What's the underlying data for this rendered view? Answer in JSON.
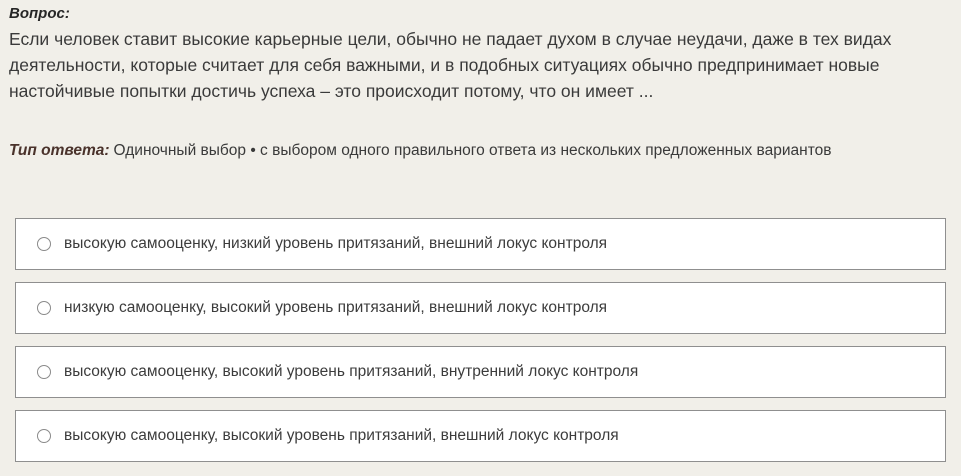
{
  "question": {
    "label": "Вопрос:",
    "text": "Если человек ставит высокие карьерные цели, обычно не падает духом в случае неудачи, даже в тех видах деятельности, которые считает для себя важными, и в подобных ситуациях обычно предпринимает новые настойчивые попытки достичь успеха – это происходит потому, что он имеет ..."
  },
  "answer_type": {
    "label": "Тип ответа:",
    "value": "Одиночный выбор • с выбором одного правильного ответа из нескольких предложенных вариантов"
  },
  "options": [
    {
      "label": "высокую самооценку, низкий уровень притязаний, внешний локус контроля",
      "selected": false
    },
    {
      "label": "низкую самооценку, высокий уровень притязаний, внешний локус контроля",
      "selected": false
    },
    {
      "label": "высокую самооценку, высокий уровень притязаний, внутренний локус контроля",
      "selected": false
    },
    {
      "label": "высокую самооценку, высокий уровень притязаний, внешний локус контроля",
      "selected": false
    }
  ],
  "colors": {
    "background": "#f1efe9",
    "question_label": "#262626",
    "answer_type_label": "#4a322b",
    "body_text": "#3c3c3c",
    "option_border": "#8f8f8f",
    "option_background": "#ffffff",
    "radio_border": "#8a8a8a"
  }
}
